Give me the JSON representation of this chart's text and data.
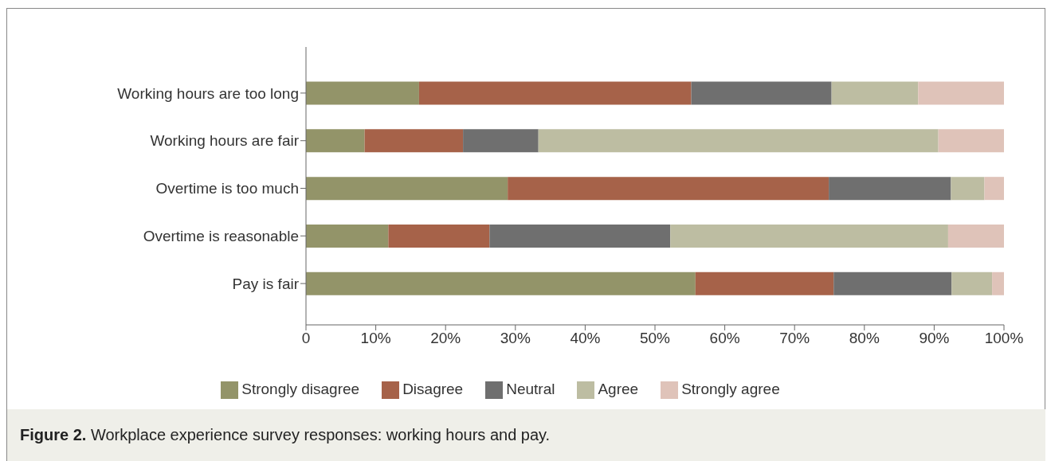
{
  "chart_data": {
    "type": "bar",
    "orientation": "horizontal",
    "stacked": true,
    "categories": [
      "Working hours are too long",
      "Working hours are fair",
      "Overtime is too much",
      "Overtime is reasonable",
      "Pay is fair"
    ],
    "series": [
      {
        "name": "Strongly disagree",
        "color": "#939469",
        "values": [
          16.2,
          8.4,
          28.9,
          11.8,
          55.8
        ]
      },
      {
        "name": "Disagree",
        "color": "#a66249",
        "values": [
          39.0,
          14.1,
          46.0,
          14.5,
          19.8
        ]
      },
      {
        "name": "Neutral",
        "color": "#6f6f6f",
        "values": [
          20.1,
          10.8,
          17.5,
          25.9,
          16.9
        ]
      },
      {
        "name": "Agree",
        "color": "#bdbda2",
        "values": [
          12.4,
          57.3,
          4.8,
          39.8,
          5.8
        ]
      },
      {
        "name": "Strongly agree",
        "color": "#dfc3b9",
        "values": [
          12.3,
          9.4,
          2.8,
          8.0,
          1.7
        ]
      }
    ],
    "xlim": [
      0,
      100
    ],
    "xticks": [
      0,
      {
        "value": 10,
        "label": "10%"
      },
      {
        "value": 20,
        "label": "20%"
      },
      {
        "value": 30,
        "label": "30%"
      },
      {
        "value": 40,
        "label": "40%"
      },
      {
        "value": 50,
        "label": "50%"
      },
      {
        "value": 60,
        "label": "60%"
      },
      {
        "value": 70,
        "label": "70%"
      },
      {
        "value": 80,
        "label": "80%"
      },
      {
        "value": 90,
        "label": "90%"
      },
      {
        "value": 100,
        "label": "100%"
      }
    ],
    "grid": false,
    "legend": "bottom",
    "annotations": [
      "Figure 2. Workplace experience survey responses: working hours and pay."
    ]
  }
}
